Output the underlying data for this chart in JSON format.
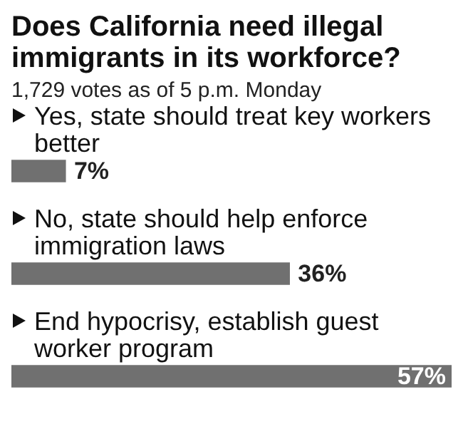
{
  "chart_data": {
    "type": "bar",
    "orientation": "horizontal",
    "title": "Does California need illegal immigrants in its workforce?",
    "subtitle": "1,729 votes as of 5 p.m. Monday",
    "categories": [
      "Yes, state should treat key workers better",
      "No, state should help enforce immigration laws",
      "End hypocrisy, establish guest worker program"
    ],
    "values": [
      7,
      36,
      57
    ],
    "value_labels": [
      "7%",
      "36%",
      "57%"
    ],
    "color": "#707070",
    "legend": false
  }
}
